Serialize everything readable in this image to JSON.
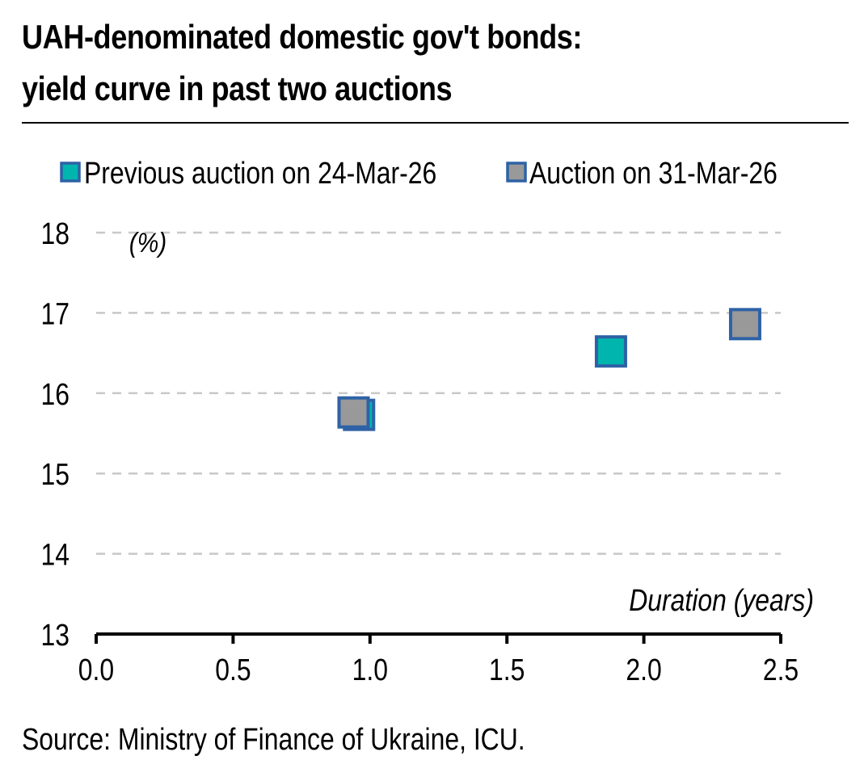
{
  "chart_data": {
    "type": "scatter",
    "title_lines": [
      "UAH-denominated domestic gov't bonds:",
      "yield curve in past two auctions"
    ],
    "source": "Source: Ministry of Finance of Ukraine, ICU.",
    "xlabel": "Duration (years)",
    "ylabel": "(%)",
    "xlim": [
      0.0,
      2.5
    ],
    "ylim": [
      13,
      18
    ],
    "x_ticks": [
      0.0,
      0.5,
      1.0,
      1.5,
      2.0,
      2.5
    ],
    "x_tick_labels": [
      "0.0",
      "0.5",
      "1.0",
      "1.5",
      "2.0",
      "2.5"
    ],
    "y_ticks": [
      13,
      14,
      15,
      16,
      17,
      18
    ],
    "y_tick_labels": [
      "13",
      "14",
      "15",
      "16",
      "17",
      "18"
    ],
    "grid": "horizontal dashed",
    "legend_position": "top",
    "series": [
      {
        "name": "Previous auction on 24-Mar-26",
        "color": "#00b5ad",
        "edge_color": "#2e62a6",
        "points": [
          {
            "x": 0.96,
            "y": 15.73
          },
          {
            "x": 1.88,
            "y": 16.52
          }
        ]
      },
      {
        "name": "Auction on 31-Mar-26",
        "color": "#999999",
        "edge_color": "#2e62a6",
        "points": [
          {
            "x": 0.94,
            "y": 15.76
          },
          {
            "x": 2.37,
            "y": 16.86
          }
        ]
      }
    ]
  }
}
